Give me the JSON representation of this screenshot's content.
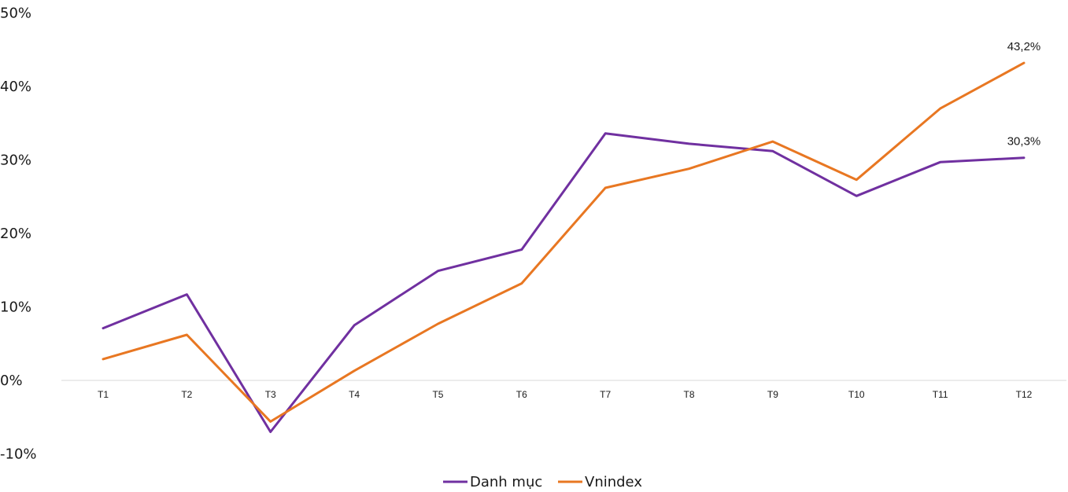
{
  "chart_data": {
    "type": "line",
    "categories": [
      "T1",
      "T2",
      "T3",
      "T4",
      "T5",
      "T6",
      "T7",
      "T8",
      "T9",
      "T10",
      "T11",
      "T12"
    ],
    "series": [
      {
        "name": "Danh mục",
        "color": "#7030a0",
        "values": [
          7.1,
          11.7,
          -7.0,
          7.5,
          14.9,
          17.8,
          33.6,
          32.2,
          31.2,
          25.1,
          29.7,
          30.3
        ]
      },
      {
        "name": "Vnindex",
        "color": "#e87722",
        "values": [
          2.9,
          6.2,
          -5.6,
          1.3,
          7.7,
          13.2,
          26.2,
          28.8,
          32.5,
          27.3,
          37.0,
          43.2
        ]
      }
    ],
    "data_labels": [
      {
        "series": 1,
        "index": 11,
        "text": "43,2%"
      },
      {
        "series": 0,
        "index": 11,
        "text": "30,3%"
      }
    ],
    "yticks": [
      {
        "value": 50,
        "label": "50%"
      },
      {
        "value": 40,
        "label": "40%"
      },
      {
        "value": 30,
        "label": "30%"
      },
      {
        "value": 20,
        "label": "20%"
      },
      {
        "value": 10,
        "label": "10%"
      },
      {
        "value": 0,
        "label": "0%"
      },
      {
        "value": -10,
        "label": "-10%"
      }
    ],
    "ylim": [
      -10,
      50
    ],
    "title": "",
    "xlabel": "",
    "ylabel": "",
    "grid": false,
    "axis_line_color": "#d9d9d9",
    "legend_position": "bottom-center"
  }
}
